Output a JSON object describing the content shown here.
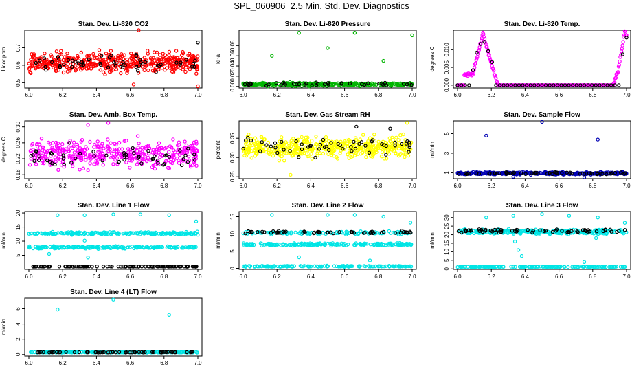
{
  "title": "SPL_060906  2.5 Min. Std. Dev. Diagnostics",
  "chart_data": [
    {
      "type": "scatter",
      "title": "Stan. Dev. Li-820 CO2",
      "ylabel": "Licor ppm",
      "xlim": [
        6.0,
        7.0
      ],
      "ylim": [
        0.47,
        0.8
      ],
      "xticks": [
        "6.0",
        "6.2",
        "6.4",
        "6.6",
        "6.8",
        "7.0"
      ],
      "yticks": [
        0.5,
        0.6,
        0.7
      ],
      "ytick_labels": [
        "0.5",
        "0.6",
        "0.7"
      ],
      "series": [
        {
          "name": "dense",
          "color": "#ff0000",
          "count": 480,
          "base": 0.615,
          "spread": 0.055,
          "outliers": [
            [
              6.65,
              0.8
            ],
            [
              6.62,
              0.49
            ],
            [
              7.0,
              0.48
            ]
          ]
        },
        {
          "name": "sparse",
          "color": "#000000",
          "count": 55,
          "base": 0.615,
          "spread": 0.045,
          "outliers": [
            [
              7.0,
              0.73
            ]
          ]
        }
      ]
    },
    {
      "type": "scatter",
      "title": "Stan. Dev. Li-820 Pressure",
      "ylabel": "kPa",
      "xlim": [
        6.0,
        7.0
      ],
      "ylim": [
        -0.003,
        0.11
      ],
      "xticks": [
        "6.0",
        "6.2",
        "6.4",
        "6.6",
        "6.8",
        "7.0"
      ],
      "yticks": [
        0.0,
        0.02,
        0.04,
        0.06,
        0.08
      ],
      "ytick_labels": [
        "0.00",
        "0.02",
        "0.04",
        "0.06",
        "0.08"
      ],
      "series": [
        {
          "name": "dense",
          "color": "#00b400",
          "count": 300,
          "base": 0.004,
          "spread": 0.003,
          "outliers": [
            [
              6.17,
              0.06
            ],
            [
              6.33,
              0.105
            ],
            [
              6.5,
              0.075
            ],
            [
              6.66,
              0.105
            ],
            [
              6.83,
              0.05
            ],
            [
              7.0,
              0.1
            ]
          ]
        },
        {
          "name": "sparse",
          "color": "#000000",
          "count": 40,
          "base": 0.005,
          "spread": 0.003,
          "outliers": []
        }
      ]
    },
    {
      "type": "scatter",
      "title": "Stan. Dev. Li-820 Temp.",
      "ylabel": "degrees C",
      "xlim": [
        6.0,
        7.0
      ],
      "ylim": [
        -0.0008,
        0.0155
      ],
      "xticks": [
        "6.0",
        "6.2",
        "6.4",
        "6.6",
        "6.8",
        "7.0"
      ],
      "yticks": [
        0.0,
        0.005,
        0.01
      ],
      "ytick_labels": [
        "0.000",
        "0.005",
        "0.010"
      ],
      "series": [
        {
          "name": "profile",
          "color": "#ff00ff",
          "profile": [
            [
              6.0,
              0.0
            ],
            [
              6.04,
              0.0
            ],
            [
              6.04,
              0.003
            ],
            [
              6.09,
              0.003
            ],
            [
              6.15,
              0.0145
            ],
            [
              6.22,
              0.003
            ],
            [
              6.24,
              0.0
            ],
            [
              6.92,
              0.0
            ],
            [
              6.95,
              0.004
            ],
            [
              6.99,
              0.0152
            ],
            [
              7.0,
              0.014
            ]
          ],
          "count": 300
        },
        {
          "name": "sparse",
          "color": "#000000",
          "profile": [
            [
              6.0,
              0.0
            ],
            [
              6.08,
              0.0
            ],
            [
              6.1,
              0.008
            ],
            [
              6.15,
              0.013
            ],
            [
              6.2,
              0.008
            ],
            [
              6.22,
              0.0
            ],
            [
              6.96,
              0.0
            ],
            [
              6.98,
              0.01
            ],
            [
              7.0,
              0.013
            ]
          ],
          "count": 45
        }
      ]
    },
    {
      "type": "scatter",
      "title": "Stan. Dev. Amb. Box Temp.",
      "ylabel": "degrees C",
      "xlim": [
        6.0,
        7.0
      ],
      "ylim": [
        0.17,
        0.315
      ],
      "xticks": [
        "6.0",
        "6.2",
        "6.4",
        "6.6",
        "6.8",
        "7.0"
      ],
      "yticks": [
        0.18,
        0.22,
        0.26,
        0.3
      ],
      "ytick_labels": [
        "0.18",
        "0.22",
        "0.26",
        "0.30"
      ],
      "series": [
        {
          "name": "dense",
          "color": "#ff00ff",
          "count": 420,
          "base": 0.232,
          "spread": 0.032,
          "outliers": [
            [
              6.47,
              0.31
            ],
            [
              6.35,
              0.305
            ]
          ]
        },
        {
          "name": "sparse",
          "color": "#000000",
          "count": 55,
          "base": 0.225,
          "spread": 0.025,
          "outliers": []
        }
      ]
    },
    {
      "type": "scatter",
      "title": "Stan. Dev. Gas Stream RH",
      "ylabel": "percent",
      "xlim": [
        6.0,
        7.0
      ],
      "ylim": [
        0.245,
        0.395
      ],
      "xticks": [
        "6.0",
        "6.2",
        "6.4",
        "6.6",
        "6.8",
        "7.0"
      ],
      "yticks": [
        0.25,
        0.3,
        0.35
      ],
      "ytick_labels": [
        "0.25",
        "0.30",
        "0.35"
      ],
      "series": [
        {
          "name": "dense",
          "color": "#ffff00",
          "count": 480,
          "base": 0.325,
          "spread": 0.025,
          "outliers": [
            [
              6.97,
              0.39
            ],
            [
              6.28,
              0.255
            ]
          ]
        },
        {
          "name": "sparse",
          "color": "#000000",
          "count": 55,
          "base": 0.33,
          "spread": 0.022,
          "outliers": [
            [
              6.67,
              0.38
            ],
            [
              6.87,
              0.375
            ]
          ]
        }
      ]
    },
    {
      "type": "scatter",
      "title": "Stan. Dev. Sample Flow",
      "ylabel": "ml/min",
      "xlim": [
        6.0,
        7.0
      ],
      "ylim": [
        0.4,
        6.3
      ],
      "xticks": [
        "6.0",
        "6.2",
        "6.4",
        "6.6",
        "6.8",
        "7.0"
      ],
      "yticks": [
        1,
        3,
        5
      ],
      "ytick_labels": [
        "1",
        "3",
        "5"
      ],
      "series": [
        {
          "name": "dense",
          "color": "#0000b4",
          "count": 350,
          "base": 0.95,
          "spread": 0.12,
          "outliers": [
            [
              6.17,
              4.8
            ],
            [
              6.5,
              6.2
            ],
            [
              6.83,
              4.4
            ],
            [
              6.33,
              0.6
            ],
            [
              6.75,
              0.55
            ]
          ]
        },
        {
          "name": "sparse",
          "color": "#000000",
          "count": 55,
          "base": 0.95,
          "spread": 0.1,
          "outliers": []
        }
      ]
    },
    {
      "type": "scatter",
      "title": "Stan. Dev. Line 1 Flow",
      "ylabel": "ml/min",
      "xlim": [
        6.0,
        7.0
      ],
      "ylim": [
        0.0,
        20.5
      ],
      "xticks": [
        "6.0",
        "6.2",
        "6.4",
        "6.6",
        "6.8",
        "7.0"
      ],
      "yticks": [
        5,
        10,
        15,
        20
      ],
      "ytick_labels": [
        "5",
        "10",
        "15",
        "20"
      ],
      "series": [
        {
          "name": "upper",
          "color": "#00e5e5",
          "count": 200,
          "base": 12.8,
          "spread": 0.4,
          "outliers": [
            [
              6.17,
              19.2
            ],
            [
              6.33,
              19.2
            ],
            [
              6.5,
              19.5
            ],
            [
              6.66,
              19.5
            ],
            [
              6.83,
              19.2
            ],
            [
              6.99,
              17.0
            ],
            [
              6.33,
              10.2
            ]
          ]
        },
        {
          "name": "middle",
          "color": "#00e5e5",
          "count": 200,
          "base": 7.8,
          "spread": 0.35,
          "outliers": [
            [
              6.35,
              4.2
            ],
            [
              6.12,
              5.5
            ]
          ]
        },
        {
          "name": "bottom",
          "color": "#000000",
          "count": 110,
          "base": 1.0,
          "spread": 0.05,
          "outliers": []
        }
      ]
    },
    {
      "type": "scatter",
      "title": "Stan. Dev. Line 2 Flow",
      "ylabel": "ml/min",
      "xlim": [
        6.0,
        7.0
      ],
      "ylim": [
        -0.3,
        16.5
      ],
      "xticks": [
        "6.0",
        "6.2",
        "6.4",
        "6.6",
        "6.8",
        "7.0"
      ],
      "yticks": [
        0,
        5,
        10,
        15
      ],
      "ytick_labels": [
        "0",
        "5",
        "10",
        "15"
      ],
      "series": [
        {
          "name": "upper",
          "color": "#00e5e5",
          "count": 120,
          "base": 10.3,
          "spread": 0.4,
          "outliers": [
            [
              6.17,
              15.5
            ],
            [
              6.5,
              15.5
            ],
            [
              6.66,
              15.5
            ],
            [
              6.83,
              15.0
            ],
            [
              6.99,
              13.3
            ]
          ]
        },
        {
          "name": "upper-black",
          "color": "#000000",
          "count": 60,
          "base": 10.5,
          "spread": 0.3,
          "outliers": []
        },
        {
          "name": "middle",
          "color": "#00e5e5",
          "count": 200,
          "base": 7.0,
          "spread": 0.35,
          "outliers": [
            [
              6.33,
              3.2
            ],
            [
              6.75,
              2.3
            ]
          ]
        },
        {
          "name": "bottom",
          "color": "#00e5e5",
          "count": 150,
          "base": 0.6,
          "spread": 0.15,
          "outliers": []
        }
      ]
    },
    {
      "type": "scatter",
      "title": "Stan. Dev. Line 3 Flow",
      "ylabel": "ml/min",
      "xlim": [
        6.0,
        7.0
      ],
      "ylim": [
        -0.3,
        33.5
      ],
      "xticks": [
        "6.0",
        "6.2",
        "6.4",
        "6.6",
        "6.8",
        "7.0"
      ],
      "yticks": [
        0,
        5,
        10,
        15,
        20,
        25,
        30
      ],
      "ytick_labels": [
        "0",
        "5",
        "10",
        "15",
        "20",
        "25",
        "30"
      ],
      "series": [
        {
          "name": "upper",
          "color": "#00e5e5",
          "count": 260,
          "base": 21.8,
          "spread": 1.2,
          "outliers": [
            [
              6.17,
              30.0
            ],
            [
              6.33,
              31.0
            ],
            [
              6.5,
              32.0
            ],
            [
              6.66,
              31.0
            ],
            [
              6.83,
              30.0
            ],
            [
              6.99,
              27.0
            ],
            [
              6.34,
              16.0
            ],
            [
              6.36,
              11.0
            ],
            [
              6.38,
              7.5
            ],
            [
              6.75,
              4.0
            ],
            [
              6.82,
              18.0
            ]
          ]
        },
        {
          "name": "upper-black",
          "color": "#000000",
          "count": 60,
          "base": 22.3,
          "spread": 0.8,
          "outliers": []
        },
        {
          "name": "bottom",
          "color": "#00e5e5",
          "count": 160,
          "base": 1.2,
          "spread": 0.15,
          "outliers": []
        }
      ]
    },
    {
      "type": "scatter",
      "title": "Stan. Dev. Line 4 (LT) Flow",
      "ylabel": "ml/min",
      "xlim": [
        6.0,
        7.0
      ],
      "ylim": [
        -0.2,
        7.4
      ],
      "xticks": [
        "6.0",
        "6.2",
        "6.4",
        "6.6",
        "6.8",
        "7.0"
      ],
      "yticks": [
        0,
        2,
        4,
        6
      ],
      "ytick_labels": [
        "0",
        "2",
        "4",
        "6"
      ],
      "series": [
        {
          "name": "dense",
          "color": "#00e5e5",
          "count": 200,
          "base": 0.3,
          "spread": 0.05,
          "outliers": [
            [
              6.17,
              5.9
            ],
            [
              6.5,
              7.2
            ],
            [
              6.83,
              5.2
            ]
          ]
        },
        {
          "name": "sparse",
          "color": "#000000",
          "count": 60,
          "base": 0.3,
          "spread": 0.04,
          "outliers": []
        }
      ]
    }
  ]
}
